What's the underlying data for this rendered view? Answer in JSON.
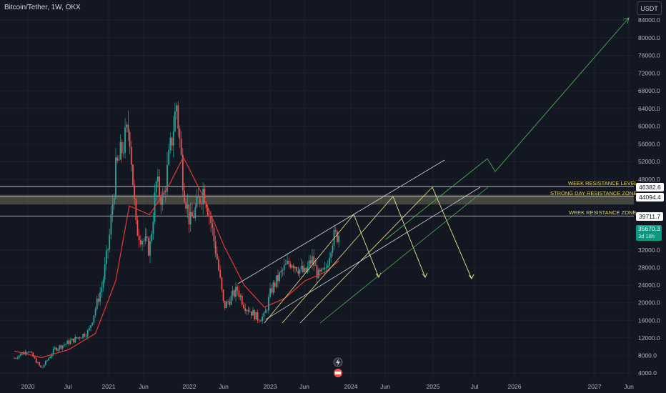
{
  "symbol": "Bitcoin/Tether, 1W, OKX",
  "currency": "USDT",
  "colors": {
    "background": "#131722",
    "grid": "#1e222d",
    "up": "#26a69a",
    "down": "#ef5350",
    "ma": "#e53935",
    "channel": "#d1d4dc",
    "projection": "#f0e68c",
    "long_projection": "#4caf50",
    "zone_fill": "#6b6b55"
  },
  "price_tags": {
    "week_resistance_level": "46382.6",
    "strong_day_resistance": "44094.4",
    "week_resistance_zone": "39711.7",
    "current_price": "35670.3",
    "countdown": "3d 18h"
  },
  "annotations": {
    "week_resistance_level": "WEEK RESISTANCE LEVEL",
    "strong_day_resistance_zone": "STRONG DAY RESISTANCE ZONE",
    "week_resistance_zone": "WEEK RESISTANCE ZONE"
  },
  "chart_data": {
    "type": "candlestick",
    "y_ticks": [
      "84000.0",
      "80000.0",
      "76000.0",
      "72000.0",
      "68000.0",
      "64000.0",
      "60000.0",
      "56000.0",
      "52000.0",
      "48000.0",
      "32000.0",
      "28000.0",
      "24000.0",
      "20000.0",
      "16000.0",
      "12000.0",
      "8000.0",
      "4000.0"
    ],
    "x_ticks": [
      "2020",
      "Jul",
      "2021",
      "Jun",
      "2022",
      "Jun",
      "2023",
      "Jun",
      "2024",
      "Jun",
      "2025",
      "Jul",
      "2026",
      "2027",
      "Jun"
    ],
    "close_series": [
      {
        "date": "2019-11",
        "price": 7400
      },
      {
        "date": "2020-01",
        "price": 9300
      },
      {
        "date": "2020-03",
        "price": 5000
      },
      {
        "date": "2020-05",
        "price": 9500
      },
      {
        "date": "2020-08",
        "price": 11700
      },
      {
        "date": "2020-10",
        "price": 13500
      },
      {
        "date": "2020-12",
        "price": 24000
      },
      {
        "date": "2021-01",
        "price": 34000
      },
      {
        "date": "2021-02",
        "price": 50000
      },
      {
        "date": "2021-04",
        "price": 60000
      },
      {
        "date": "2021-05",
        "price": 37000
      },
      {
        "date": "2021-07",
        "price": 32000
      },
      {
        "date": "2021-08",
        "price": 47000
      },
      {
        "date": "2021-09",
        "price": 43000
      },
      {
        "date": "2021-11",
        "price": 65000
      },
      {
        "date": "2021-12",
        "price": 47000
      },
      {
        "date": "2022-01",
        "price": 38000
      },
      {
        "date": "2022-03",
        "price": 46000
      },
      {
        "date": "2022-04",
        "price": 39000
      },
      {
        "date": "2022-05",
        "price": 30000
      },
      {
        "date": "2022-06",
        "price": 19000
      },
      {
        "date": "2022-08",
        "price": 23000
      },
      {
        "date": "2022-09",
        "price": 19500
      },
      {
        "date": "2022-11",
        "price": 16500
      },
      {
        "date": "2022-12",
        "price": 16800
      },
      {
        "date": "2023-01",
        "price": 23000
      },
      {
        "date": "2023-03",
        "price": 28000
      },
      {
        "date": "2023-04",
        "price": 29500
      },
      {
        "date": "2023-06",
        "price": 26500
      },
      {
        "date": "2023-07",
        "price": 30000
      },
      {
        "date": "2023-08",
        "price": 26000
      },
      {
        "date": "2023-09",
        "price": 27000
      },
      {
        "date": "2023-10",
        "price": 34500
      },
      {
        "date": "2023-11",
        "price": 35670
      }
    ],
    "ma_series": [
      {
        "date": "2019-11",
        "price": 9000
      },
      {
        "date": "2020-03",
        "price": 7500
      },
      {
        "date": "2020-07",
        "price": 9300
      },
      {
        "date": "2020-11",
        "price": 13000
      },
      {
        "date": "2021-02",
        "price": 25000
      },
      {
        "date": "2021-04",
        "price": 42000
      },
      {
        "date": "2021-07",
        "price": 40000
      },
      {
        "date": "2021-10",
        "price": 47000
      },
      {
        "date": "2021-12",
        "price": 53000
      },
      {
        "date": "2022-03",
        "price": 44000
      },
      {
        "date": "2022-06",
        "price": 33000
      },
      {
        "date": "2022-09",
        "price": 24000
      },
      {
        "date": "2022-12",
        "price": 19000
      },
      {
        "date": "2023-03",
        "price": 21000
      },
      {
        "date": "2023-06",
        "price": 25000
      },
      {
        "date": "2023-09",
        "price": 27000
      },
      {
        "date": "2023-11",
        "price": 29500
      }
    ],
    "horizontal_levels": [
      46382.6,
      44094.4,
      39711.7
    ],
    "resistance_zone": [
      42300,
      44500
    ],
    "grid": true
  }
}
